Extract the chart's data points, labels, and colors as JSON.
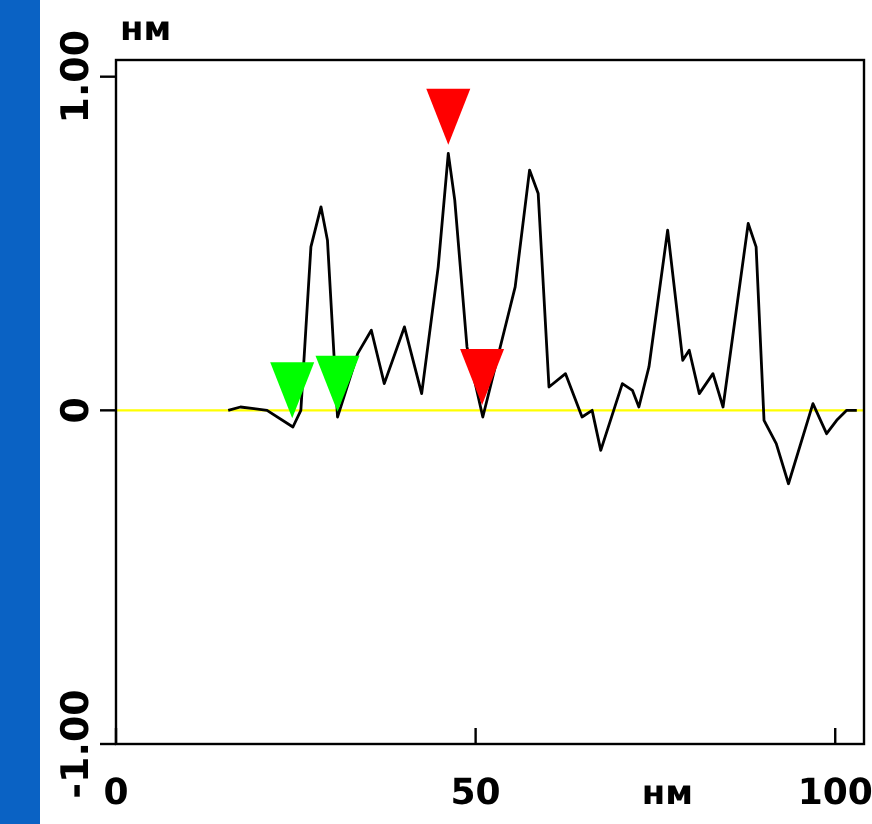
{
  "chart_data": {
    "type": "line",
    "xlabel": "нм",
    "ylabel": "нм",
    "xlim": [
      0,
      104
    ],
    "ylim": [
      -1,
      1.05
    ],
    "xticks": [
      0,
      50,
      100
    ],
    "yticks": [
      {
        "value": -1,
        "label": "-1.00"
      },
      0,
      {
        "value": 1,
        "label": "1.00"
      }
    ],
    "grid": false,
    "line_style": "solid",
    "ref_lines": [
      {
        "axis": "y",
        "value": 0,
        "color": "#ffff00"
      }
    ],
    "series": [
      {
        "color": "#000000",
        "x": [
          15.6,
          17.3,
          21.0,
          24.6,
          25.7,
          27.1,
          28.5,
          29.4,
          30.8,
          33.6,
          35.5,
          37.3,
          40.1,
          42.5,
          44.8,
          46.2,
          47.1,
          48.8,
          51.0,
          55.5,
          57.5,
          58.7,
          60.2,
          62.5,
          64.8,
          66.2,
          67.4,
          70.4,
          71.8,
          72.7,
          74.1,
          76.7,
          78.8,
          79.7,
          81.1,
          83.0,
          84.4,
          87.9,
          89.0,
          90.1,
          91.8,
          93.5,
          96.9,
          98.8,
          100.2,
          101.6,
          103.0
        ],
        "values": [
          0.0,
          0.01,
          0.0,
          -0.05,
          0.0,
          0.49,
          0.61,
          0.51,
          -0.02,
          0.17,
          0.24,
          0.08,
          0.25,
          0.05,
          0.43,
          0.77,
          0.63,
          0.19,
          -0.02,
          0.37,
          0.72,
          0.65,
          0.07,
          0.11,
          -0.02,
          0.0,
          -0.12,
          0.08,
          0.06,
          0.01,
          0.13,
          0.54,
          0.15,
          0.18,
          0.05,
          0.11,
          0.01,
          0.56,
          0.49,
          -0.03,
          -0.1,
          -0.22,
          0.02,
          -0.07,
          -0.03,
          0.0,
          0.0
        ]
      },
      {
        "type": "scatter",
        "marker": "triangle",
        "color": "#00ff00",
        "x": [
          24.5,
          30.8
        ],
        "values": [
          0.06,
          0.08
        ]
      },
      {
        "type": "scatter",
        "marker": "triangle",
        "color": "#ff0000",
        "x": [
          46.2,
          50.9
        ],
        "values": [
          0.88,
          0.1
        ]
      }
    ]
  }
}
